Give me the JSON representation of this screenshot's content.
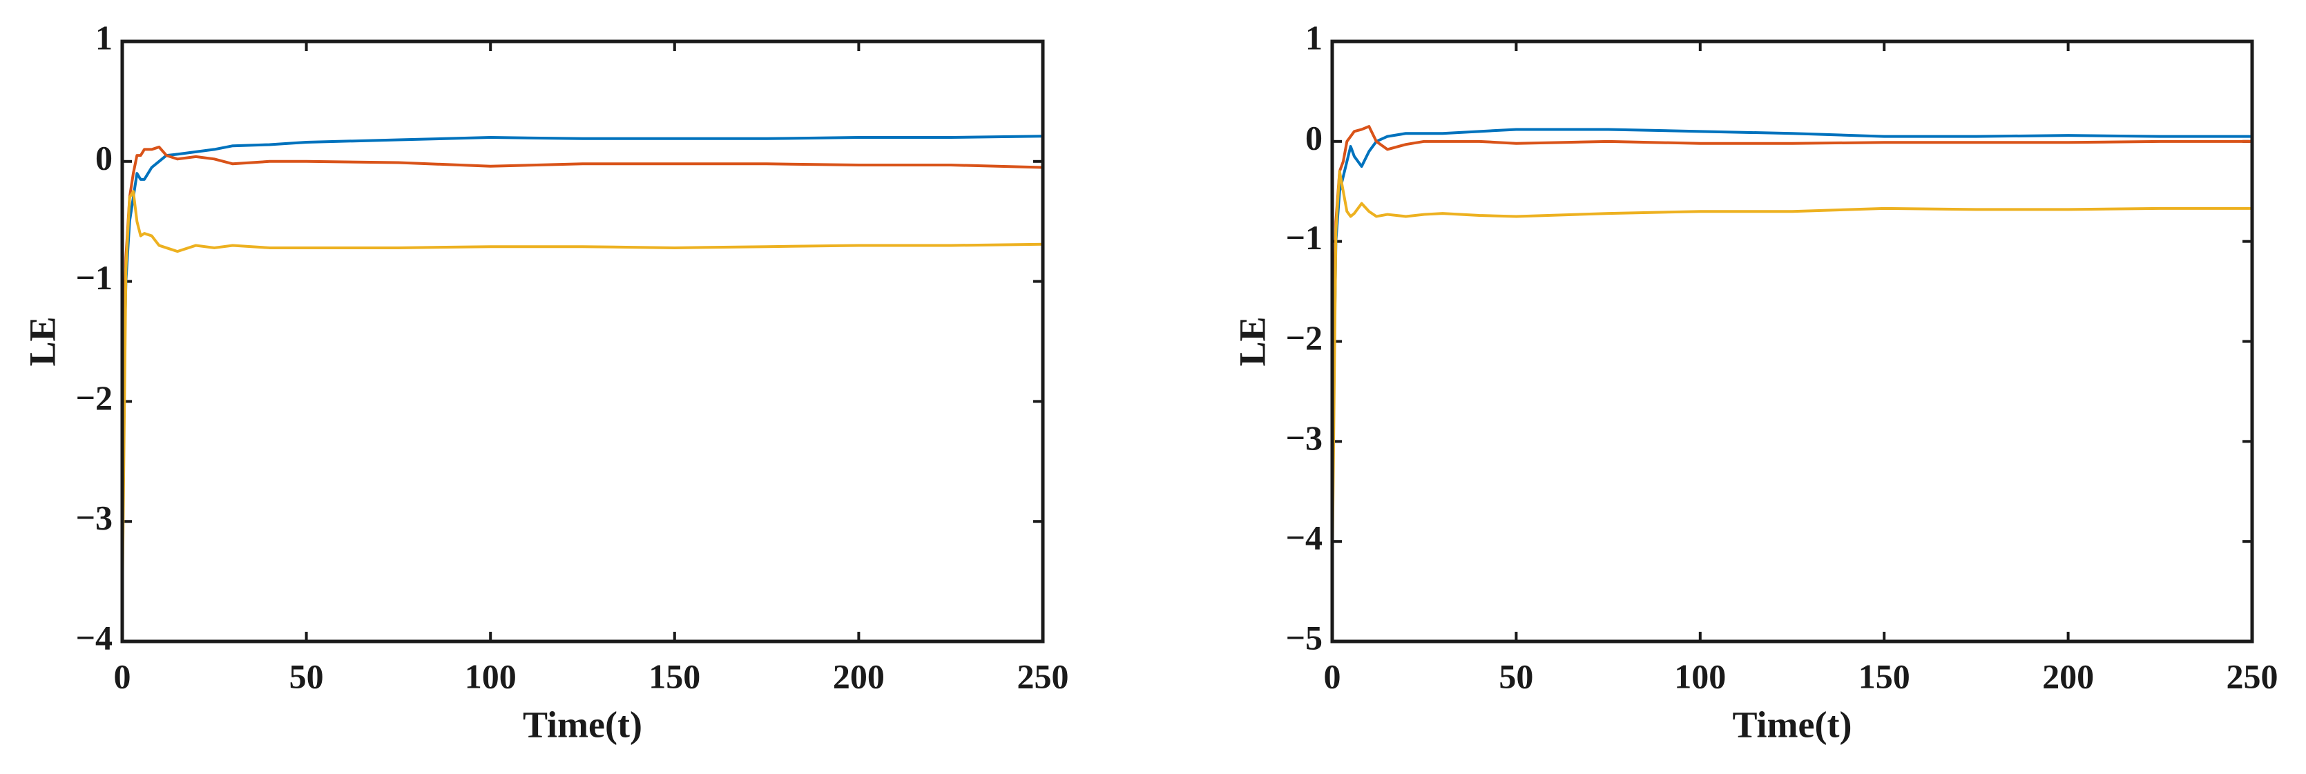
{
  "chart_data": [
    {
      "type": "line",
      "xlabel": "Time(t)",
      "ylabel": "LE",
      "xlim": [
        0,
        250
      ],
      "xticks": [
        0,
        50,
        100,
        150,
        200,
        250
      ],
      "ylim": [
        -4,
        1
      ],
      "yticks": [
        {
          "value": -4,
          "label": "−4"
        },
        {
          "value": -3,
          "label": "−3"
        },
        {
          "value": -2,
          "label": "−2"
        },
        {
          "value": -1,
          "label": "−1"
        },
        0,
        1
      ],
      "x": [
        0,
        1,
        2,
        3,
        4,
        5,
        6,
        8,
        10,
        12,
        15,
        20,
        25,
        30,
        40,
        50,
        75,
        100,
        125,
        150,
        175,
        200,
        225,
        250
      ],
      "series": [
        {
          "color": "#0072BD",
          "values": [
            -2.5,
            -1.0,
            -0.5,
            -0.3,
            -0.1,
            -0.15,
            -0.15,
            -0.05,
            0.0,
            0.05,
            0.06,
            0.08,
            0.1,
            0.13,
            0.14,
            0.16,
            0.18,
            0.2,
            0.19,
            0.19,
            0.19,
            0.2,
            0.2,
            0.21
          ]
        },
        {
          "color": "#D95319",
          "values": [
            -2.0,
            -0.8,
            -0.3,
            -0.1,
            0.05,
            0.05,
            0.1,
            0.1,
            0.12,
            0.05,
            0.02,
            0.04,
            0.02,
            -0.02,
            0.0,
            0.0,
            -0.01,
            -0.04,
            -0.02,
            -0.02,
            -0.02,
            -0.03,
            -0.03,
            -0.05
          ]
        },
        {
          "color": "#EDB120",
          "values": [
            -3.7,
            -0.9,
            -0.3,
            -0.25,
            -0.5,
            -0.62,
            -0.6,
            -0.62,
            -0.7,
            -0.72,
            -0.75,
            -0.7,
            -0.72,
            -0.7,
            -0.72,
            -0.72,
            -0.72,
            -0.71,
            -0.71,
            -0.72,
            -0.71,
            -0.7,
            -0.7,
            -0.69
          ]
        }
      ]
    },
    {
      "type": "line",
      "xlabel": "Time(t)",
      "ylabel": "LE",
      "xlim": [
        0,
        250
      ],
      "xticks": [
        0,
        50,
        100,
        150,
        200,
        250
      ],
      "ylim": [
        -5,
        1
      ],
      "yticks": [
        {
          "value": -5,
          "label": "−5"
        },
        {
          "value": -4,
          "label": "−4"
        },
        {
          "value": -3,
          "label": "−3"
        },
        {
          "value": -2,
          "label": "−2"
        },
        {
          "value": -1,
          "label": "−1"
        },
        0,
        1
      ],
      "x": [
        0,
        1,
        2,
        3,
        4,
        5,
        6,
        8,
        10,
        12,
        15,
        20,
        25,
        30,
        40,
        50,
        75,
        100,
        125,
        150,
        175,
        200,
        225,
        250
      ],
      "series": [
        {
          "color": "#0072BD",
          "values": [
            -3.5,
            -1.0,
            -0.5,
            -0.35,
            -0.2,
            -0.05,
            -0.15,
            -0.25,
            -0.1,
            0.0,
            0.05,
            0.08,
            0.08,
            0.08,
            0.1,
            0.12,
            0.12,
            0.1,
            0.08,
            0.05,
            0.05,
            0.06,
            0.05,
            0.05
          ]
        },
        {
          "color": "#D95319",
          "values": [
            -3.0,
            -0.8,
            -0.3,
            -0.2,
            0.0,
            0.05,
            0.1,
            0.12,
            0.15,
            0.0,
            -0.08,
            -0.03,
            0.0,
            0.0,
            0.0,
            -0.02,
            0.0,
            -0.02,
            -0.02,
            -0.01,
            -0.01,
            -0.01,
            0.0,
            0.0
          ]
        },
        {
          "color": "#EDB120",
          "values": [
            -4.3,
            -0.9,
            -0.3,
            -0.5,
            -0.7,
            -0.75,
            -0.72,
            -0.62,
            -0.7,
            -0.75,
            -0.73,
            -0.75,
            -0.73,
            -0.72,
            -0.74,
            -0.75,
            -0.72,
            -0.7,
            -0.7,
            -0.67,
            -0.68,
            -0.68,
            -0.67,
            -0.67
          ]
        }
      ]
    }
  ]
}
